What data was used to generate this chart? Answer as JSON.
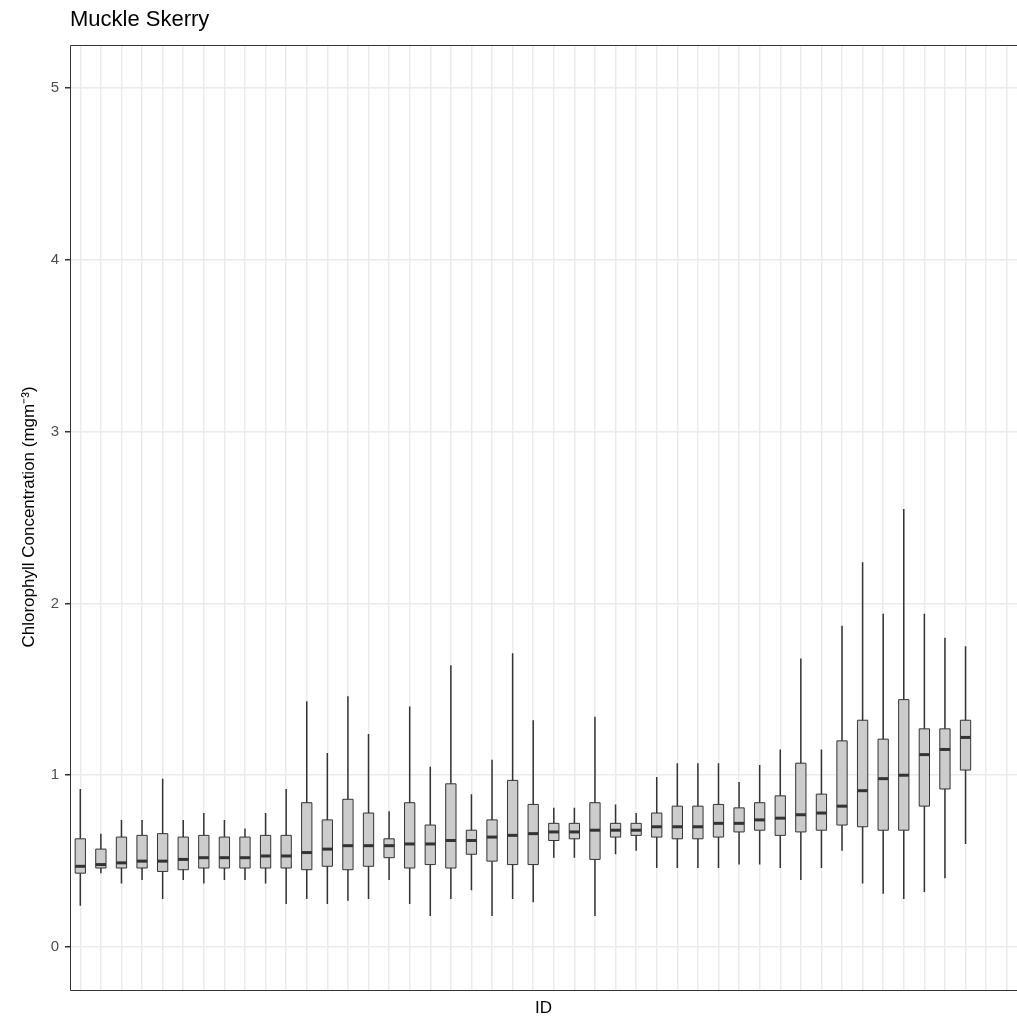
{
  "chart_data": {
    "type": "box",
    "title": "Muckle Skerry",
    "xlabel": "ID",
    "ylabel": "Chlorophyll Concentration (mgm⁻³)",
    "categories": [
      null,
      null,
      null,
      null,
      null,
      null,
      null,
      null,
      null,
      null,
      null,
      null,
      null,
      null,
      null,
      null,
      null,
      null,
      null,
      null,
      null,
      null,
      null,
      null,
      null,
      null,
      null,
      null,
      null,
      null,
      null,
      null,
      null,
      null,
      null,
      null,
      null,
      null,
      null,
      null,
      null,
      null,
      null,
      null,
      null,
      null
    ],
    "color": "#cccccc",
    "boxes": [
      {
        "low": 0.24,
        "q1": 0.43,
        "median": 0.47,
        "q3": 0.63,
        "high": 0.92
      },
      {
        "low": 0.43,
        "q1": 0.46,
        "median": 0.48,
        "q3": 0.57,
        "high": 0.66
      },
      {
        "low": 0.37,
        "q1": 0.46,
        "median": 0.49,
        "q3": 0.64,
        "high": 0.74
      },
      {
        "low": 0.39,
        "q1": 0.46,
        "median": 0.5,
        "q3": 0.65,
        "high": 0.74
      },
      {
        "low": 0.28,
        "q1": 0.44,
        "median": 0.5,
        "q3": 0.66,
        "high": 0.98
      },
      {
        "low": 0.39,
        "q1": 0.45,
        "median": 0.51,
        "q3": 0.64,
        "high": 0.74
      },
      {
        "low": 0.37,
        "q1": 0.46,
        "median": 0.52,
        "q3": 0.65,
        "high": 0.78
      },
      {
        "low": 0.39,
        "q1": 0.46,
        "median": 0.52,
        "q3": 0.64,
        "high": 0.74
      },
      {
        "low": 0.39,
        "q1": 0.46,
        "median": 0.52,
        "q3": 0.64,
        "high": 0.69
      },
      {
        "low": 0.37,
        "q1": 0.46,
        "median": 0.53,
        "q3": 0.65,
        "high": 0.78
      },
      {
        "low": 0.25,
        "q1": 0.46,
        "median": 0.53,
        "q3": 0.65,
        "high": 0.92
      },
      {
        "low": 0.28,
        "q1": 0.45,
        "median": 0.55,
        "q3": 0.84,
        "high": 1.43
      },
      {
        "low": 0.25,
        "q1": 0.47,
        "median": 0.57,
        "q3": 0.74,
        "high": 1.13
      },
      {
        "low": 0.27,
        "q1": 0.45,
        "median": 0.59,
        "q3": 0.86,
        "high": 1.46
      },
      {
        "low": 0.28,
        "q1": 0.47,
        "median": 0.59,
        "q3": 0.78,
        "high": 1.24
      },
      {
        "low": 0.39,
        "q1": 0.52,
        "median": 0.59,
        "q3": 0.63,
        "high": 0.79
      },
      {
        "low": 0.25,
        "q1": 0.46,
        "median": 0.6,
        "q3": 0.84,
        "high": 1.4
      },
      {
        "low": 0.18,
        "q1": 0.48,
        "median": 0.6,
        "q3": 0.71,
        "high": 1.05
      },
      {
        "low": 0.28,
        "q1": 0.46,
        "median": 0.62,
        "q3": 0.95,
        "high": 1.64
      },
      {
        "low": 0.33,
        "q1": 0.54,
        "median": 0.62,
        "q3": 0.68,
        "high": 0.89
      },
      {
        "low": 0.18,
        "q1": 0.5,
        "median": 0.64,
        "q3": 0.74,
        "high": 1.09
      },
      {
        "low": 0.28,
        "q1": 0.48,
        "median": 0.65,
        "q3": 0.97,
        "high": 1.71
      },
      {
        "low": 0.26,
        "q1": 0.48,
        "median": 0.66,
        "q3": 0.83,
        "high": 1.32
      },
      {
        "low": 0.52,
        "q1": 0.62,
        "median": 0.67,
        "q3": 0.72,
        "high": 0.81
      },
      {
        "low": 0.52,
        "q1": 0.63,
        "median": 0.67,
        "q3": 0.72,
        "high": 0.81
      },
      {
        "low": 0.18,
        "q1": 0.51,
        "median": 0.68,
        "q3": 0.84,
        "high": 1.34
      },
      {
        "low": 0.54,
        "q1": 0.64,
        "median": 0.68,
        "q3": 0.72,
        "high": 0.83
      },
      {
        "low": 0.56,
        "q1": 0.65,
        "median": 0.68,
        "q3": 0.72,
        "high": 0.78
      },
      {
        "low": 0.46,
        "q1": 0.64,
        "median": 0.7,
        "q3": 0.78,
        "high": 0.99
      },
      {
        "low": 0.46,
        "q1": 0.63,
        "median": 0.7,
        "q3": 0.82,
        "high": 1.07
      },
      {
        "low": 0.46,
        "q1": 0.63,
        "median": 0.7,
        "q3": 0.82,
        "high": 1.07
      },
      {
        "low": 0.46,
        "q1": 0.64,
        "median": 0.72,
        "q3": 0.83,
        "high": 1.07
      },
      {
        "low": 0.48,
        "q1": 0.67,
        "median": 0.72,
        "q3": 0.81,
        "high": 0.96
      },
      {
        "low": 0.48,
        "q1": 0.68,
        "median": 0.74,
        "q3": 0.84,
        "high": 1.06
      },
      {
        "low": 0.46,
        "q1": 0.65,
        "median": 0.75,
        "q3": 0.88,
        "high": 1.15
      },
      {
        "low": 0.39,
        "q1": 0.67,
        "median": 0.77,
        "q3": 1.07,
        "high": 1.68
      },
      {
        "low": 0.46,
        "q1": 0.68,
        "median": 0.78,
        "q3": 0.89,
        "high": 1.15
      },
      {
        "low": 0.56,
        "q1": 0.71,
        "median": 0.82,
        "q3": 1.2,
        "high": 1.87
      },
      {
        "low": 0.37,
        "q1": 0.7,
        "median": 0.91,
        "q3": 1.32,
        "high": 2.24
      },
      {
        "low": 0.31,
        "q1": 0.68,
        "median": 0.98,
        "q3": 1.21,
        "high": 1.94
      },
      {
        "low": 0.28,
        "q1": 0.68,
        "median": 1.0,
        "q3": 1.44,
        "high": 2.55
      },
      {
        "low": 0.32,
        "q1": 0.82,
        "median": 1.12,
        "q3": 1.27,
        "high": 1.94
      },
      {
        "low": 0.4,
        "q1": 0.92,
        "median": 1.15,
        "q3": 1.27,
        "high": 1.8
      },
      {
        "low": 0.6,
        "q1": 1.03,
        "median": 1.22,
        "q3": 1.32,
        "high": 1.75
      },
      null,
      null
    ],
    "ylim": [
      -0.25,
      5.25
    ],
    "yticks": [
      0,
      1,
      2,
      3,
      4,
      5
    ],
    "grid": true
  }
}
